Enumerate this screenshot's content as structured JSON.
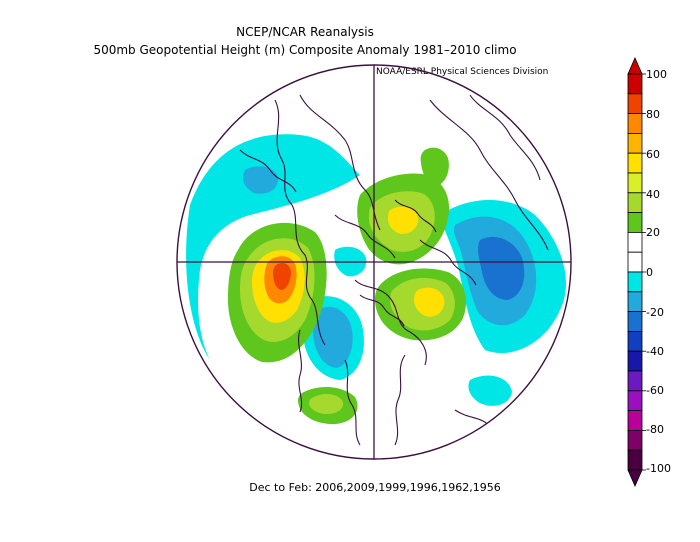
{
  "header": {
    "title": "NCEP/NCAR Reanalysis",
    "subtitle": "500mb Geopotential Height (m) Composite Anomaly 1981–2010 climo",
    "credit": "NOAA/ESRL Physical Sciences Division"
  },
  "footer": {
    "period": "Dec to Feb: 2006,2009,1999,1996,1962,1956"
  },
  "colorbar": {
    "labels": [
      "100",
      "80",
      "60",
      "40",
      "20",
      "0",
      "-20",
      "-40",
      "-60",
      "-80",
      "-100"
    ],
    "colors": [
      "#cc0000",
      "#ee4400",
      "#ff8800",
      "#ffb400",
      "#ffe000",
      "#d8ef2a",
      "#a6d92e",
      "#5ec61c",
      "#ffffff",
      "#ffffff",
      "#00e6e6",
      "#22aadd",
      "#1a72d0",
      "#1040c0",
      "#1818a8",
      "#6a1ac0",
      "#9a10c0",
      "#b8009a",
      "#80006a",
      "#4a0040"
    ]
  },
  "map": {
    "projection": "polar stereographic, Northern Hemisphere",
    "shading_colors": {
      "pos_weak": "#5ec61c",
      "pos_mid": "#a6d92e",
      "pos_strong": "#ffe000",
      "pos_max": "#ff8800",
      "pos_peak": "#ee4400",
      "neg_weak": "#00e6e6",
      "neg_mid": "#22aadd",
      "neg_strong": "#1a72d0",
      "coast": "#3a1040"
    }
  }
}
